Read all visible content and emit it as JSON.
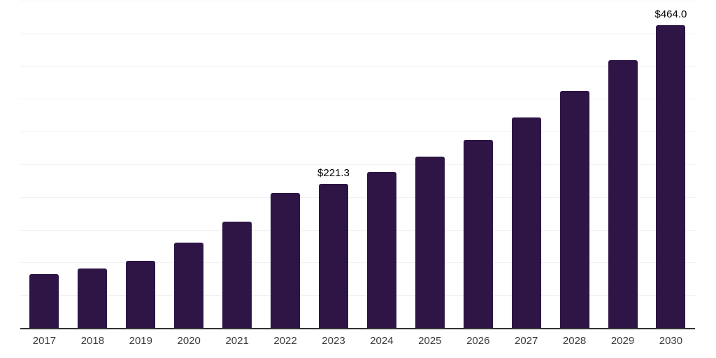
{
  "chart_data": {
    "type": "bar",
    "title": "",
    "xlabel": "",
    "ylabel": "",
    "categories": [
      "2017",
      "2018",
      "2019",
      "2020",
      "2021",
      "2022",
      "2023",
      "2024",
      "2025",
      "2026",
      "2027",
      "2028",
      "2029",
      "2030"
    ],
    "values": [
      83.4,
      91.9,
      104.0,
      131.1,
      163.2,
      207.3,
      221.3,
      239.6,
      262.8,
      288.5,
      322.6,
      363.2,
      410.3,
      464.0
    ],
    "annotations": [
      {
        "category": "2023",
        "text": "$221.3"
      },
      {
        "category": "2030",
        "text": "$464.0"
      }
    ],
    "ylim": [
      0,
      500
    ],
    "grid": true,
    "grid_step": 50,
    "legend": false
  },
  "style": {
    "bar_color": "#2E1545",
    "grid_color": "#F1F1F1",
    "axis_color": "#333333",
    "tick_label_color": "#3A3A3A",
    "annotation_color": "#000000",
    "background_color": "#FFFFFF"
  }
}
